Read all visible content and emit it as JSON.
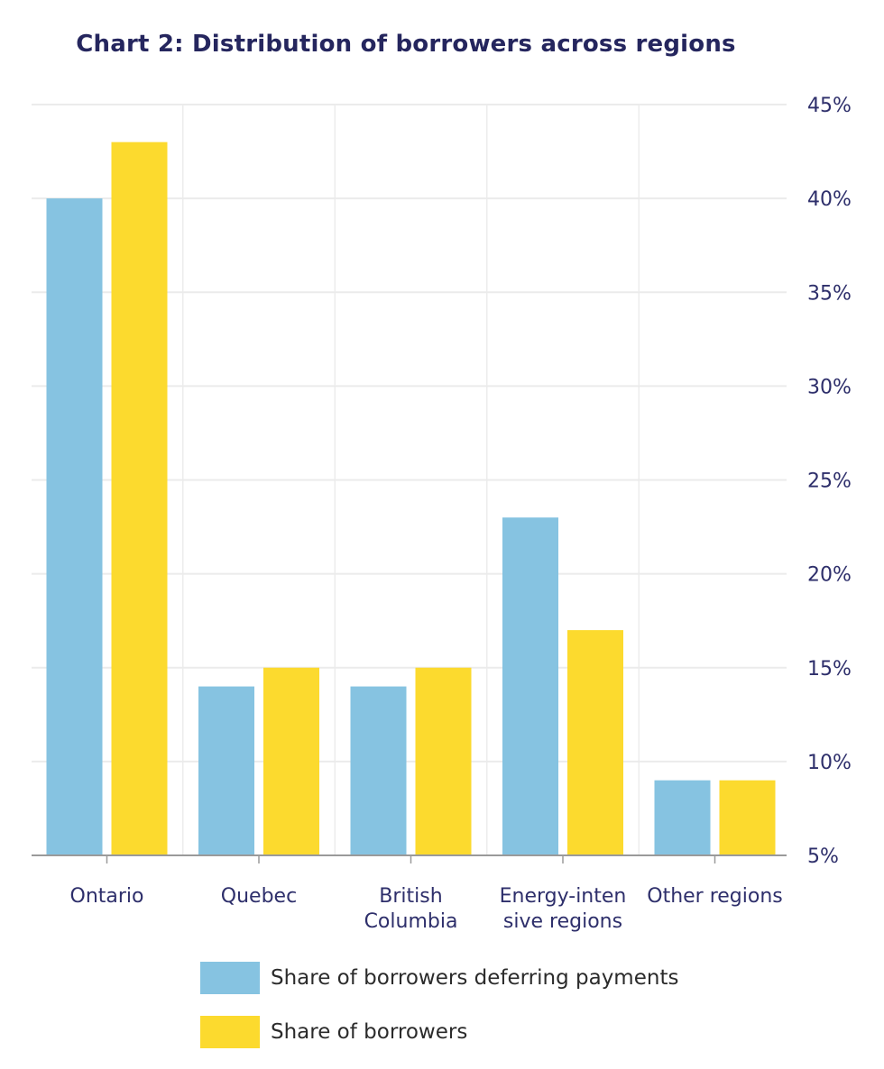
{
  "chart_data": {
    "type": "bar",
    "title": "Chart 2: Distribution of borrowers across regions",
    "xlabel": "",
    "ylabel": "",
    "categories": [
      [
        "Ontario"
      ],
      [
        "Quebec"
      ],
      [
        "British",
        "Columbia"
      ],
      [
        "Energy-inten",
        "sive regions"
      ],
      [
        "Other regions"
      ]
    ],
    "series": [
      {
        "name": "Share of borrowers deferring payments",
        "color": "#86c3e1",
        "values": [
          40,
          14,
          14,
          23,
          9
        ]
      },
      {
        "name": "Share of borrowers",
        "color": "#fcda2e",
        "values": [
          43,
          15,
          15,
          17,
          9
        ]
      }
    ],
    "ylim": [
      5,
      45
    ],
    "yticks": [
      5,
      10,
      15,
      20,
      25,
      30,
      35,
      40,
      45
    ],
    "ytick_suffix": "%",
    "y_axis_side": "right",
    "grid": true,
    "legend_position": "bottom"
  }
}
